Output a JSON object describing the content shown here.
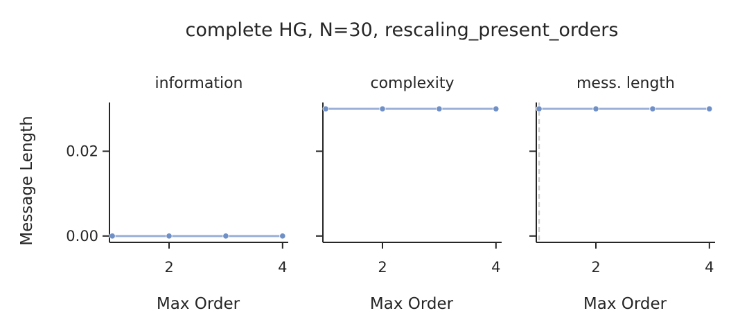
{
  "title": "complete HG, N=30, rescaling_present_orders",
  "colors": {
    "series": "#6f8fc7",
    "axis": "#262626",
    "refline": "#cccccc",
    "background": "#ffffff"
  },
  "chart_data": [
    {
      "type": "line",
      "title": "information",
      "xlabel": "Max Order",
      "ylabel": "Message Length",
      "x": [
        1,
        2,
        3,
        4
      ],
      "y": [
        0.0,
        0.0,
        0.0,
        0.0
      ],
      "xticks": [
        "2",
        "4"
      ],
      "yticks": [
        "0.00",
        "0.02"
      ],
      "xlim": [
        0.95,
        4.1
      ],
      "ylim": [
        -0.0015,
        0.0315
      ],
      "grid": false,
      "vline_x": null
    },
    {
      "type": "line",
      "title": "complexity",
      "xlabel": "Max Order",
      "ylabel": "",
      "x": [
        1,
        2,
        3,
        4
      ],
      "y": [
        0.03,
        0.03,
        0.03,
        0.03
      ],
      "xticks": [
        "2",
        "4"
      ],
      "yticks": [
        "",
        ""
      ],
      "xlim": [
        0.95,
        4.1
      ],
      "ylim": [
        -0.0015,
        0.0315
      ],
      "grid": false,
      "vline_x": null
    },
    {
      "type": "line",
      "title": "mess. length",
      "xlabel": "Max Order",
      "ylabel": "",
      "x": [
        1,
        2,
        3,
        4
      ],
      "y": [
        0.03,
        0.03,
        0.03,
        0.03
      ],
      "xticks": [
        "2",
        "4"
      ],
      "yticks": [
        "",
        ""
      ],
      "xlim": [
        0.95,
        4.1
      ],
      "ylim": [
        -0.0015,
        0.0315
      ],
      "grid": false,
      "vline_x": 1
    }
  ]
}
